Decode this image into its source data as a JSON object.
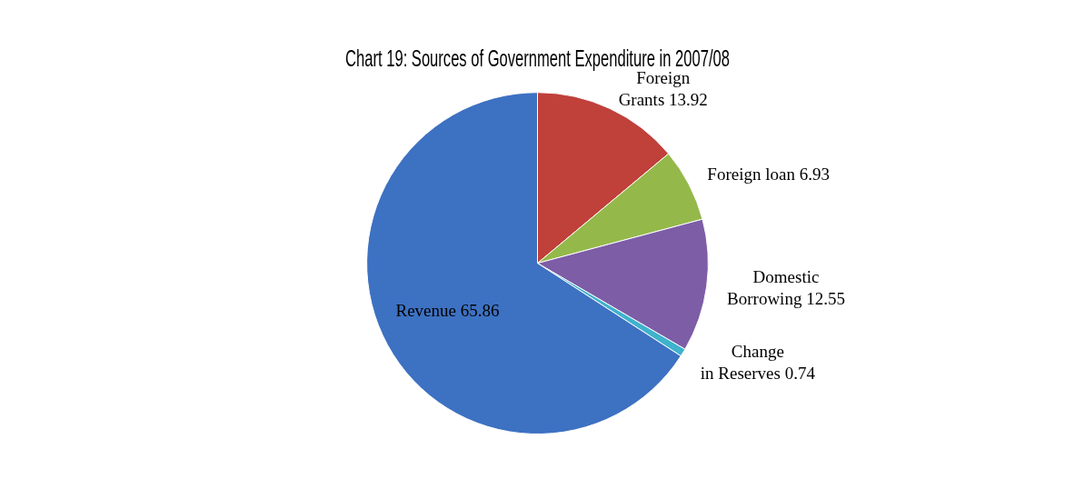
{
  "chart_data": {
    "type": "pie",
    "title": "Chart 19: Sources of Government Expenditure in 2007/08",
    "categories": [
      "Foreign Grants",
      "Foreign loan",
      "Domestic Borrowing",
      "Change in Reserves",
      "Revenue"
    ],
    "values": [
      13.92,
      6.93,
      12.55,
      0.74,
      65.86
    ],
    "colors": [
      "#c0403a",
      "#94b94a",
      "#7d5da6",
      "#3fb2cc",
      "#3d71c2"
    ],
    "data_labels": true,
    "legend": false
  }
}
